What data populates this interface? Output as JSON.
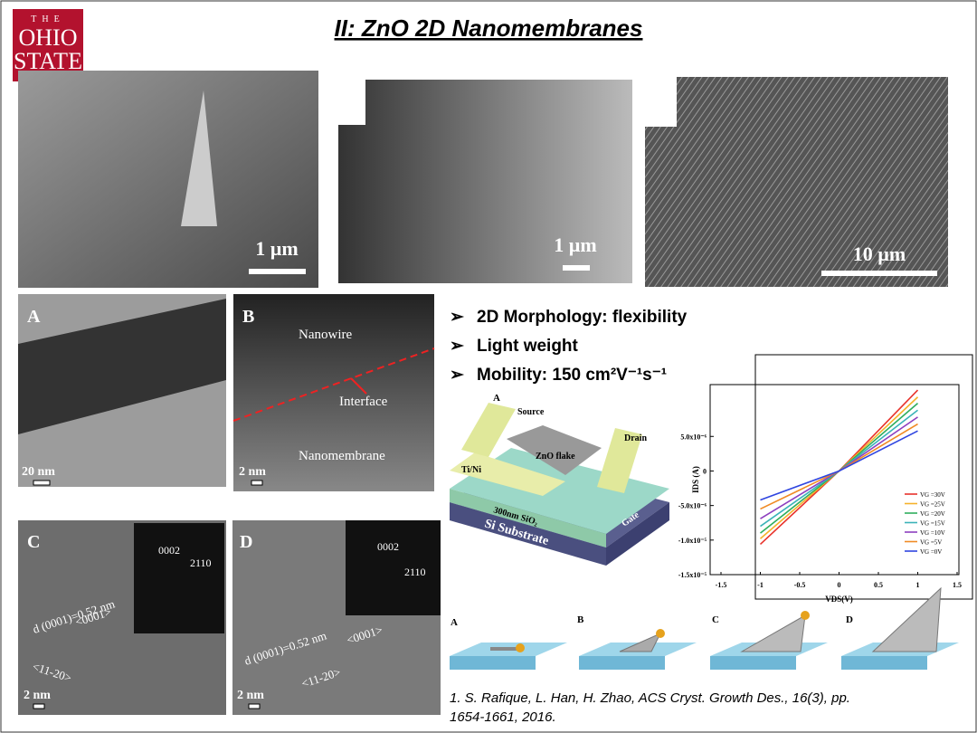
{
  "header": {
    "title": "II: ZnO 2D Nanomembranes",
    "logo": [
      "THE",
      "OHIO",
      "STATE"
    ]
  },
  "sem": [
    {
      "scale": "1 µm"
    },
    {
      "scale": "1 µm"
    },
    {
      "scale": "10 µm"
    }
  ],
  "tem": {
    "a": {
      "label": "A",
      "scale": "20 nm"
    },
    "b": {
      "label": "B",
      "scale": "2 nm",
      "top": "Nanowire",
      "mid": "Interface",
      "bottom": "Nanomembrane"
    },
    "c": {
      "label": "C",
      "scale": "2 nm",
      "spacing": "d (0001)=0.52 nm",
      "dir1": "<0001>",
      "dir2": "<11-20>",
      "spot1": "0002",
      "spot2": "2110"
    },
    "d": {
      "label": "D",
      "scale": "2 nm",
      "spacing": "d (0001)=0.52 nm",
      "dir1": "<0001>",
      "dir2": "<11-20>",
      "spot1": "0002",
      "spot2": "2110"
    }
  },
  "bullets": [
    "2D Morphology: flexibility",
    "Light weight",
    "Mobility: 150 cm²V⁻¹s⁻¹"
  ],
  "device": {
    "label": "A",
    "source": "Source",
    "drain": "Drain",
    "flake": "ZnO flake",
    "contact": "Ti/Ni",
    "oxide": "300nm SiO₂",
    "substrate": "Si Substrate",
    "gate": "Gate"
  },
  "growth": [
    "A",
    "B",
    "C",
    "D"
  ],
  "reference": [
    "1. S. Rafique, L. Han, H. Zhao, ACS Cryst. Growth Des., 16(3), pp.",
    "1654-1661, 2016."
  ],
  "chart_data": {
    "type": "line",
    "x_label": "VDS(V)",
    "y_label": "IDS (A)",
    "x": [
      -1,
      0,
      1
    ],
    "xlim": [
      -1.5,
      1.5
    ],
    "xticks": [
      -1.5,
      -1,
      -0.5,
      0,
      0.5,
      1,
      1.5
    ],
    "ylim": [
      -1.5e-05,
      1.25e-05
    ],
    "yticks": [
      {
        "value": 5e-06,
        "label": "5.0x10⁻⁶"
      },
      0,
      {
        "value": -5e-06,
        "label": "-5.0x10⁻⁶"
      },
      {
        "value": -1e-05,
        "label": "-1.0x10⁻⁵"
      },
      {
        "value": -1.5e-05,
        "label": "-1.5x10⁻⁵"
      }
    ],
    "series": [
      {
        "name": "VG =30V",
        "color": "#e8322b",
        "values": [
          -1.06e-05,
          0,
          1.17e-05
        ]
      },
      {
        "name": "VG =25V",
        "color": "#f5b22a",
        "values": [
          -9.8e-06,
          0,
          1.07e-05
        ]
      },
      {
        "name": "VG =20V",
        "color": "#2fae5e",
        "values": [
          -9e-06,
          0,
          9.8e-06
        ]
      },
      {
        "name": "VG =15V",
        "color": "#3bb3b8",
        "values": [
          -8e-06,
          0,
          8.8e-06
        ]
      },
      {
        "name": "VG =10V",
        "color": "#8d3fbf",
        "values": [
          -6.9e-06,
          0,
          7.8e-06
        ]
      },
      {
        "name": "VG =5V",
        "color": "#f08a24",
        "values": [
          -5.5e-06,
          0,
          6.8e-06
        ]
      },
      {
        "name": "VG =0V",
        "color": "#2f45e0",
        "values": [
          -4.2e-06,
          0,
          5.8e-06
        ]
      }
    ]
  }
}
